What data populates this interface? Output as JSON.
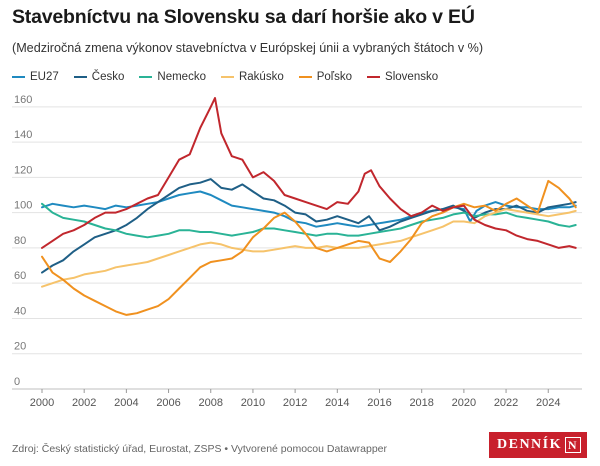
{
  "title": "Stavebníctvu na Slovensku sa darí horšie ako v EÚ",
  "subtitle": "(Medziročná zmena výkonov stavebníctva v Európskej únii a vybraných štátoch v %)",
  "footer": "Zdroj: Český statistický úřad, Eurostat, ZSPS • Vytvorené pomocou Datawrapper",
  "logo": {
    "text": "DENNÍK",
    "mark": "N",
    "color": "#c8202c"
  },
  "chart_data": {
    "type": "line",
    "xlim": [
      2000,
      2025.6
    ],
    "ylim": [
      0,
      165
    ],
    "yticks": [
      0,
      20,
      40,
      60,
      80,
      100,
      120,
      140,
      160
    ],
    "xticks": [
      2000,
      2002,
      2004,
      2006,
      2008,
      2010,
      2012,
      2014,
      2016,
      2018,
      2020,
      2022,
      2024
    ],
    "grid": true,
    "legend_position": "top-left",
    "series": [
      {
        "name": "EU27",
        "color": "#1f8ac0",
        "x": [
          2000,
          2000.5,
          2001,
          2001.5,
          2002,
          2002.5,
          2003,
          2003.5,
          2004,
          2004.5,
          2005,
          2005.5,
          2006,
          2006.5,
          2007,
          2007.5,
          2008,
          2008.5,
          2009,
          2009.5,
          2010,
          2010.5,
          2011,
          2011.5,
          2012,
          2012.5,
          2013,
          2013.5,
          2014,
          2014.5,
          2015,
          2015.5,
          2016,
          2016.5,
          2017,
          2017.5,
          2018,
          2018.5,
          2019,
          2019.5,
          2020,
          2020.3,
          2020.6,
          2021,
          2021.5,
          2022,
          2022.5,
          2023,
          2023.5,
          2024,
          2024.5,
          2025,
          2025.3
        ],
        "y": [
          103,
          105,
          104,
          103,
          104,
          103,
          102,
          104,
          103,
          104,
          105,
          106,
          108,
          110,
          111,
          112,
          110,
          107,
          104,
          103,
          102,
          101,
          100,
          98,
          95,
          94,
          92,
          93,
          94,
          93,
          92,
          93,
          94,
          95,
          96,
          98,
          100,
          101,
          102,
          103,
          102,
          95,
          101,
          104,
          106,
          104,
          103,
          103,
          102,
          102,
          103,
          103,
          104
        ]
      },
      {
        "name": "Česko",
        "color": "#1f5f86",
        "x": [
          2000,
          2000.5,
          2001,
          2001.5,
          2002,
          2002.5,
          2003,
          2003.5,
          2004,
          2004.5,
          2005,
          2005.5,
          2006,
          2006.5,
          2007,
          2007.5,
          2008,
          2008.5,
          2009,
          2009.5,
          2010,
          2010.5,
          2011,
          2011.5,
          2012,
          2012.5,
          2013,
          2013.5,
          2014,
          2014.5,
          2015,
          2015.5,
          2016,
          2016.5,
          2017,
          2017.5,
          2018,
          2018.5,
          2019,
          2019.5,
          2020,
          2020.5,
          2021,
          2021.5,
          2022,
          2022.5,
          2023,
          2023.5,
          2024,
          2024.5,
          2025,
          2025.3
        ],
        "y": [
          66,
          70,
          73,
          78,
          82,
          86,
          88,
          90,
          93,
          97,
          102,
          106,
          110,
          114,
          116,
          117,
          119,
          114,
          113,
          116,
          112,
          108,
          107,
          104,
          100,
          99,
          95,
          96,
          98,
          96,
          94,
          98,
          90,
          92,
          95,
          97,
          99,
          101,
          102,
          104,
          101,
          97,
          100,
          102,
          102,
          104,
          101,
          100,
          103,
          104,
          105,
          106
        ]
      },
      {
        "name": "Nemecko",
        "color": "#2ab396",
        "x": [
          2000,
          2000.5,
          2001,
          2001.5,
          2002,
          2002.5,
          2003,
          2003.5,
          2004,
          2004.5,
          2005,
          2005.5,
          2006,
          2006.5,
          2007,
          2007.5,
          2008,
          2008.5,
          2009,
          2009.5,
          2010,
          2010.5,
          2011,
          2011.5,
          2012,
          2012.5,
          2013,
          2013.5,
          2014,
          2014.5,
          2015,
          2015.5,
          2016,
          2016.5,
          2017,
          2017.5,
          2018,
          2018.5,
          2019,
          2019.5,
          2020,
          2020.5,
          2021,
          2021.5,
          2022,
          2022.5,
          2023,
          2023.5,
          2024,
          2024.5,
          2025,
          2025.3
        ],
        "y": [
          105,
          100,
          97,
          96,
          95,
          93,
          91,
          90,
          88,
          87,
          86,
          87,
          88,
          90,
          90,
          89,
          89,
          88,
          87,
          88,
          89,
          91,
          91,
          90,
          89,
          88,
          87,
          88,
          88,
          87,
          87,
          88,
          89,
          90,
          91,
          93,
          95,
          96,
          97,
          99,
          100,
          98,
          99,
          99,
          100,
          98,
          97,
          96,
          95,
          93,
          92,
          93
        ]
      },
      {
        "name": "Rakúsko",
        "color": "#f6c36b",
        "x": [
          2000,
          2000.5,
          2001,
          2001.5,
          2002,
          2002.5,
          2003,
          2003.5,
          2004,
          2004.5,
          2005,
          2005.5,
          2006,
          2006.5,
          2007,
          2007.5,
          2008,
          2008.5,
          2009,
          2009.5,
          2010,
          2010.5,
          2011,
          2011.5,
          2012,
          2012.5,
          2013,
          2013.5,
          2014,
          2014.5,
          2015,
          2015.5,
          2016,
          2016.5,
          2017,
          2017.5,
          2018,
          2018.5,
          2019,
          2019.5,
          2020,
          2020.5,
          2021,
          2021.5,
          2022,
          2022.5,
          2023,
          2023.5,
          2024,
          2024.5,
          2025,
          2025.3
        ],
        "y": [
          58,
          60,
          62,
          63,
          65,
          66,
          67,
          69,
          70,
          71,
          72,
          74,
          76,
          78,
          80,
          82,
          83,
          82,
          80,
          79,
          78,
          78,
          79,
          80,
          81,
          80,
          80,
          81,
          80,
          80,
          80,
          81,
          82,
          83,
          84,
          86,
          88,
          90,
          92,
          95,
          95,
          94,
          98,
          100,
          102,
          101,
          100,
          99,
          98,
          99,
          100,
          101
        ]
      },
      {
        "name": "Poľsko",
        "color": "#f0911f",
        "x": [
          2000,
          2000.5,
          2001,
          2001.5,
          2002,
          2002.5,
          2003,
          2003.5,
          2004,
          2004.5,
          2005,
          2005.5,
          2006,
          2006.5,
          2007,
          2007.5,
          2008,
          2008.5,
          2009,
          2009.5,
          2010,
          2010.5,
          2011,
          2011.5,
          2012,
          2012.5,
          2013,
          2013.5,
          2014,
          2014.5,
          2015,
          2015.5,
          2016,
          2016.5,
          2017,
          2017.5,
          2018,
          2018.5,
          2019,
          2019.5,
          2020,
          2020.5,
          2021,
          2021.5,
          2022,
          2022.5,
          2023,
          2023.5,
          2024,
          2024.5,
          2025,
          2025.3
        ],
        "y": [
          75,
          66,
          62,
          57,
          53,
          50,
          47,
          44,
          42,
          43,
          45,
          47,
          51,
          57,
          63,
          69,
          72,
          73,
          74,
          78,
          86,
          91,
          97,
          100,
          95,
          88,
          80,
          78,
          80,
          82,
          84,
          83,
          74,
          72,
          78,
          85,
          94,
          98,
          100,
          103,
          105,
          103,
          104,
          101,
          105,
          108,
          104,
          100,
          118,
          114,
          108,
          103
        ]
      },
      {
        "name": "Slovensko",
        "color": "#c1272d",
        "x": [
          2000,
          2000.5,
          2001,
          2001.5,
          2002,
          2002.5,
          2003,
          2003.5,
          2004,
          2004.5,
          2005,
          2005.5,
          2006,
          2006.5,
          2007,
          2007.5,
          2008,
          2008.2,
          2008.5,
          2009,
          2009.5,
          2010,
          2010.5,
          2011,
          2011.5,
          2012,
          2012.5,
          2013,
          2013.5,
          2014,
          2014.5,
          2015,
          2015.3,
          2015.6,
          2016,
          2016.5,
          2017,
          2017.5,
          2018,
          2018.5,
          2019,
          2019.5,
          2020,
          2020.5,
          2021,
          2021.5,
          2022,
          2022.5,
          2023,
          2023.5,
          2024,
          2024.5,
          2025,
          2025.3
        ],
        "y": [
          80,
          84,
          88,
          90,
          93,
          97,
          100,
          100,
          102,
          105,
          108,
          110,
          120,
          130,
          133,
          148,
          160,
          165,
          145,
          132,
          130,
          120,
          123,
          118,
          110,
          108,
          106,
          104,
          102,
          106,
          105,
          112,
          122,
          124,
          115,
          108,
          102,
          98,
          100,
          104,
          101,
          103,
          104,
          96,
          93,
          91,
          90,
          87,
          85,
          84,
          82,
          80,
          81,
          80
        ]
      }
    ]
  }
}
